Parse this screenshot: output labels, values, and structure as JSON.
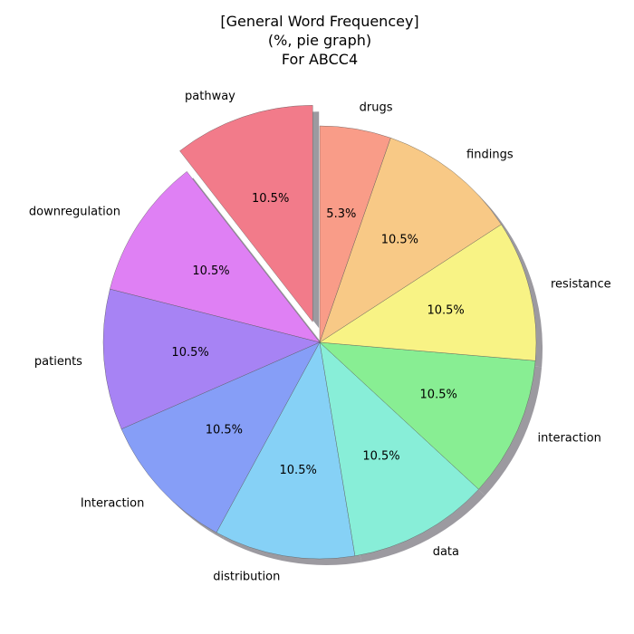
{
  "chart_data": {
    "type": "pie",
    "title_lines": [
      "[General Word Frequencey]",
      "(%, pie graph)",
      "For ABCC4"
    ],
    "start_angle_deg": 90,
    "direction": "counterclockwise",
    "shadow": true,
    "explode_label": "pathway",
    "slices": [
      {
        "label": "pathway",
        "value": 10.5,
        "pct_label": "10.5%",
        "color": "#f27b8a"
      },
      {
        "label": "downregulation",
        "value": 10.5,
        "pct_label": "10.5%",
        "color": "#df80f4"
      },
      {
        "label": "patients",
        "value": 10.5,
        "pct_label": "10.5%",
        "color": "#a783f4"
      },
      {
        "label": "Interaction",
        "value": 10.5,
        "pct_label": "10.5%",
        "color": "#869ef7"
      },
      {
        "label": "distribution",
        "value": 10.5,
        "pct_label": "10.5%",
        "color": "#86d1f6"
      },
      {
        "label": "data",
        "value": 10.5,
        "pct_label": "10.5%",
        "color": "#88eed8"
      },
      {
        "label": "interaction",
        "value": 10.5,
        "pct_label": "10.5%",
        "color": "#88ee93"
      },
      {
        "label": "resistance",
        "value": 10.5,
        "pct_label": "10.5%",
        "color": "#f8f385"
      },
      {
        "label": "findings",
        "value": 10.5,
        "pct_label": "10.5%",
        "color": "#f8c986"
      },
      {
        "label": "drugs",
        "value": 5.3,
        "pct_label": "5.3%",
        "color": "#f99c88"
      }
    ]
  }
}
